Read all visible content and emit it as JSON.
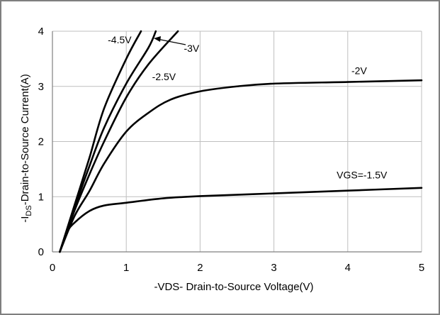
{
  "chart_data": {
    "type": "line",
    "title": "",
    "xlabel": "-VDS- Drain-to-Source Voltage(V)",
    "ylabel_parts": [
      "-I",
      "DS",
      "-Drain-to-Source Current(A)"
    ],
    "xlim": [
      0,
      5
    ],
    "ylim": [
      0,
      4
    ],
    "xticks": [
      0,
      1,
      2,
      3,
      4,
      5
    ],
    "yticks": [
      0,
      1,
      2,
      3,
      4
    ],
    "grid": true,
    "line_color": "#000000",
    "grid_color": "#bfbfbf",
    "series": [
      {
        "name": "VGS=-1.5V",
        "points": [
          [
            0.1,
            0
          ],
          [
            0.2,
            0.36
          ],
          [
            0.3,
            0.53
          ],
          [
            0.5,
            0.74
          ],
          [
            0.7,
            0.84
          ],
          [
            1.0,
            0.89
          ],
          [
            1.5,
            0.97
          ],
          [
            2.0,
            1.01
          ],
          [
            3.0,
            1.06
          ],
          [
            4.0,
            1.11
          ],
          [
            5.0,
            1.16
          ]
        ]
      },
      {
        "name": "-2V",
        "points": [
          [
            0.1,
            0
          ],
          [
            0.3,
            0.65
          ],
          [
            0.5,
            1.1
          ],
          [
            0.7,
            1.6
          ],
          [
            1.0,
            2.18
          ],
          [
            1.3,
            2.52
          ],
          [
            1.6,
            2.76
          ],
          [
            2.0,
            2.91
          ],
          [
            2.5,
            3.0
          ],
          [
            3.0,
            3.05
          ],
          [
            4.0,
            3.08
          ],
          [
            5.0,
            3.11
          ]
        ]
      },
      {
        "name": "-2.5V",
        "points": [
          [
            0.1,
            0
          ],
          [
            0.3,
            0.75
          ],
          [
            0.5,
            1.4
          ],
          [
            0.7,
            2.0
          ],
          [
            1.0,
            2.8
          ],
          [
            1.3,
            3.4
          ],
          [
            1.7,
            4.0
          ]
        ]
      },
      {
        "name": "-3V",
        "points": [
          [
            0.1,
            0
          ],
          [
            0.3,
            0.8
          ],
          [
            0.5,
            1.55
          ],
          [
            0.7,
            2.25
          ],
          [
            1.0,
            3.05
          ],
          [
            1.3,
            3.7
          ],
          [
            1.4,
            4.0
          ]
        ]
      },
      {
        "name": "-4.5V",
        "points": [
          [
            0.1,
            0
          ],
          [
            0.3,
            0.85
          ],
          [
            0.5,
            1.7
          ],
          [
            0.7,
            2.6
          ],
          [
            1.0,
            3.5
          ],
          [
            1.2,
            4.0
          ]
        ]
      }
    ],
    "annotations": [
      {
        "text": "-4.5V",
        "x": 0.75,
        "y": 3.78
      },
      {
        "text": "-3V",
        "x": 1.78,
        "y": 3.63
      },
      {
        "text": "-2.5V",
        "x": 1.35,
        "y": 3.11
      },
      {
        "text": "-2V",
        "x": 4.05,
        "y": 3.22
      },
      {
        "text": "VGS=-1.5V",
        "x": 3.85,
        "y": 1.33
      }
    ]
  }
}
